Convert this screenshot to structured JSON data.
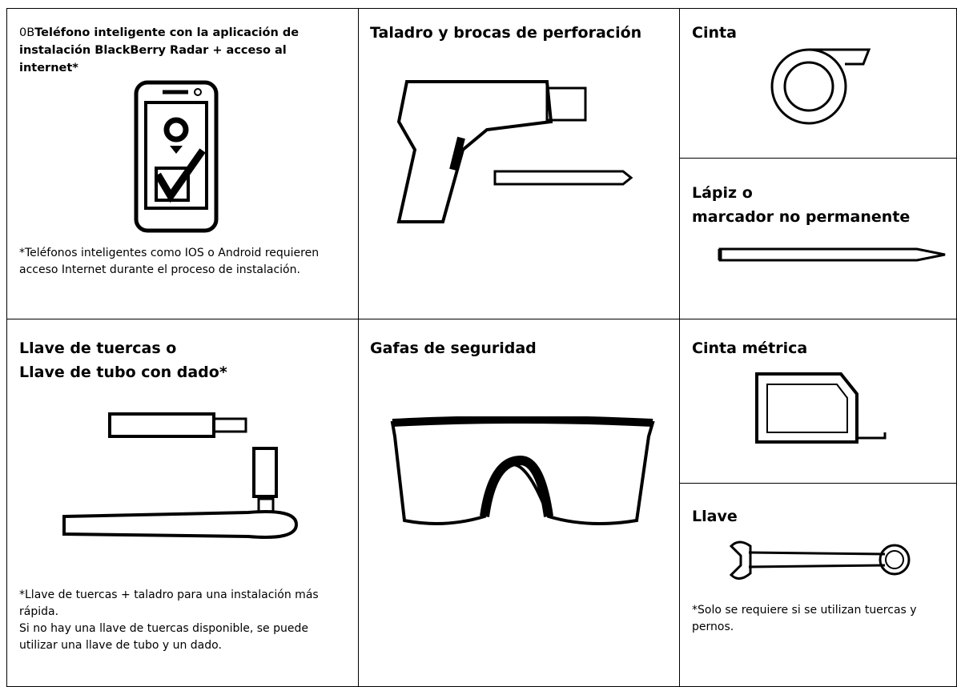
{
  "cells": [
    {
      "prefix": "0B",
      "title": "Teléfono inteligente con la aplicación de instalación BlackBerry Radar + acceso al internet*",
      "note": "*Teléfonos inteligentes como IOS o Android requieren acceso Internet durante el proceso de instalación."
    },
    {
      "title": "Taladro y brocas de perforación"
    },
    {
      "title": "Cinta"
    },
    {
      "title_lines": [
        "Lápiz o",
        "marcador no permanente"
      ]
    },
    {
      "title_lines": [
        "Llave de tuercas o",
        "Llave de tubo con dado*"
      ],
      "notes": [
        "*Llave de tuercas + taladro para una instalación más rápida.",
        "Si no hay una llave de tuercas disponible, se puede utilizar una llave de tubo y un dado."
      ]
    },
    {
      "title": "Gafas de seguridad"
    },
    {
      "title": "Cinta métrica"
    },
    {
      "title": "Llave",
      "note": "*Solo se requiere si se utilizan tuercas y pernos."
    }
  ]
}
